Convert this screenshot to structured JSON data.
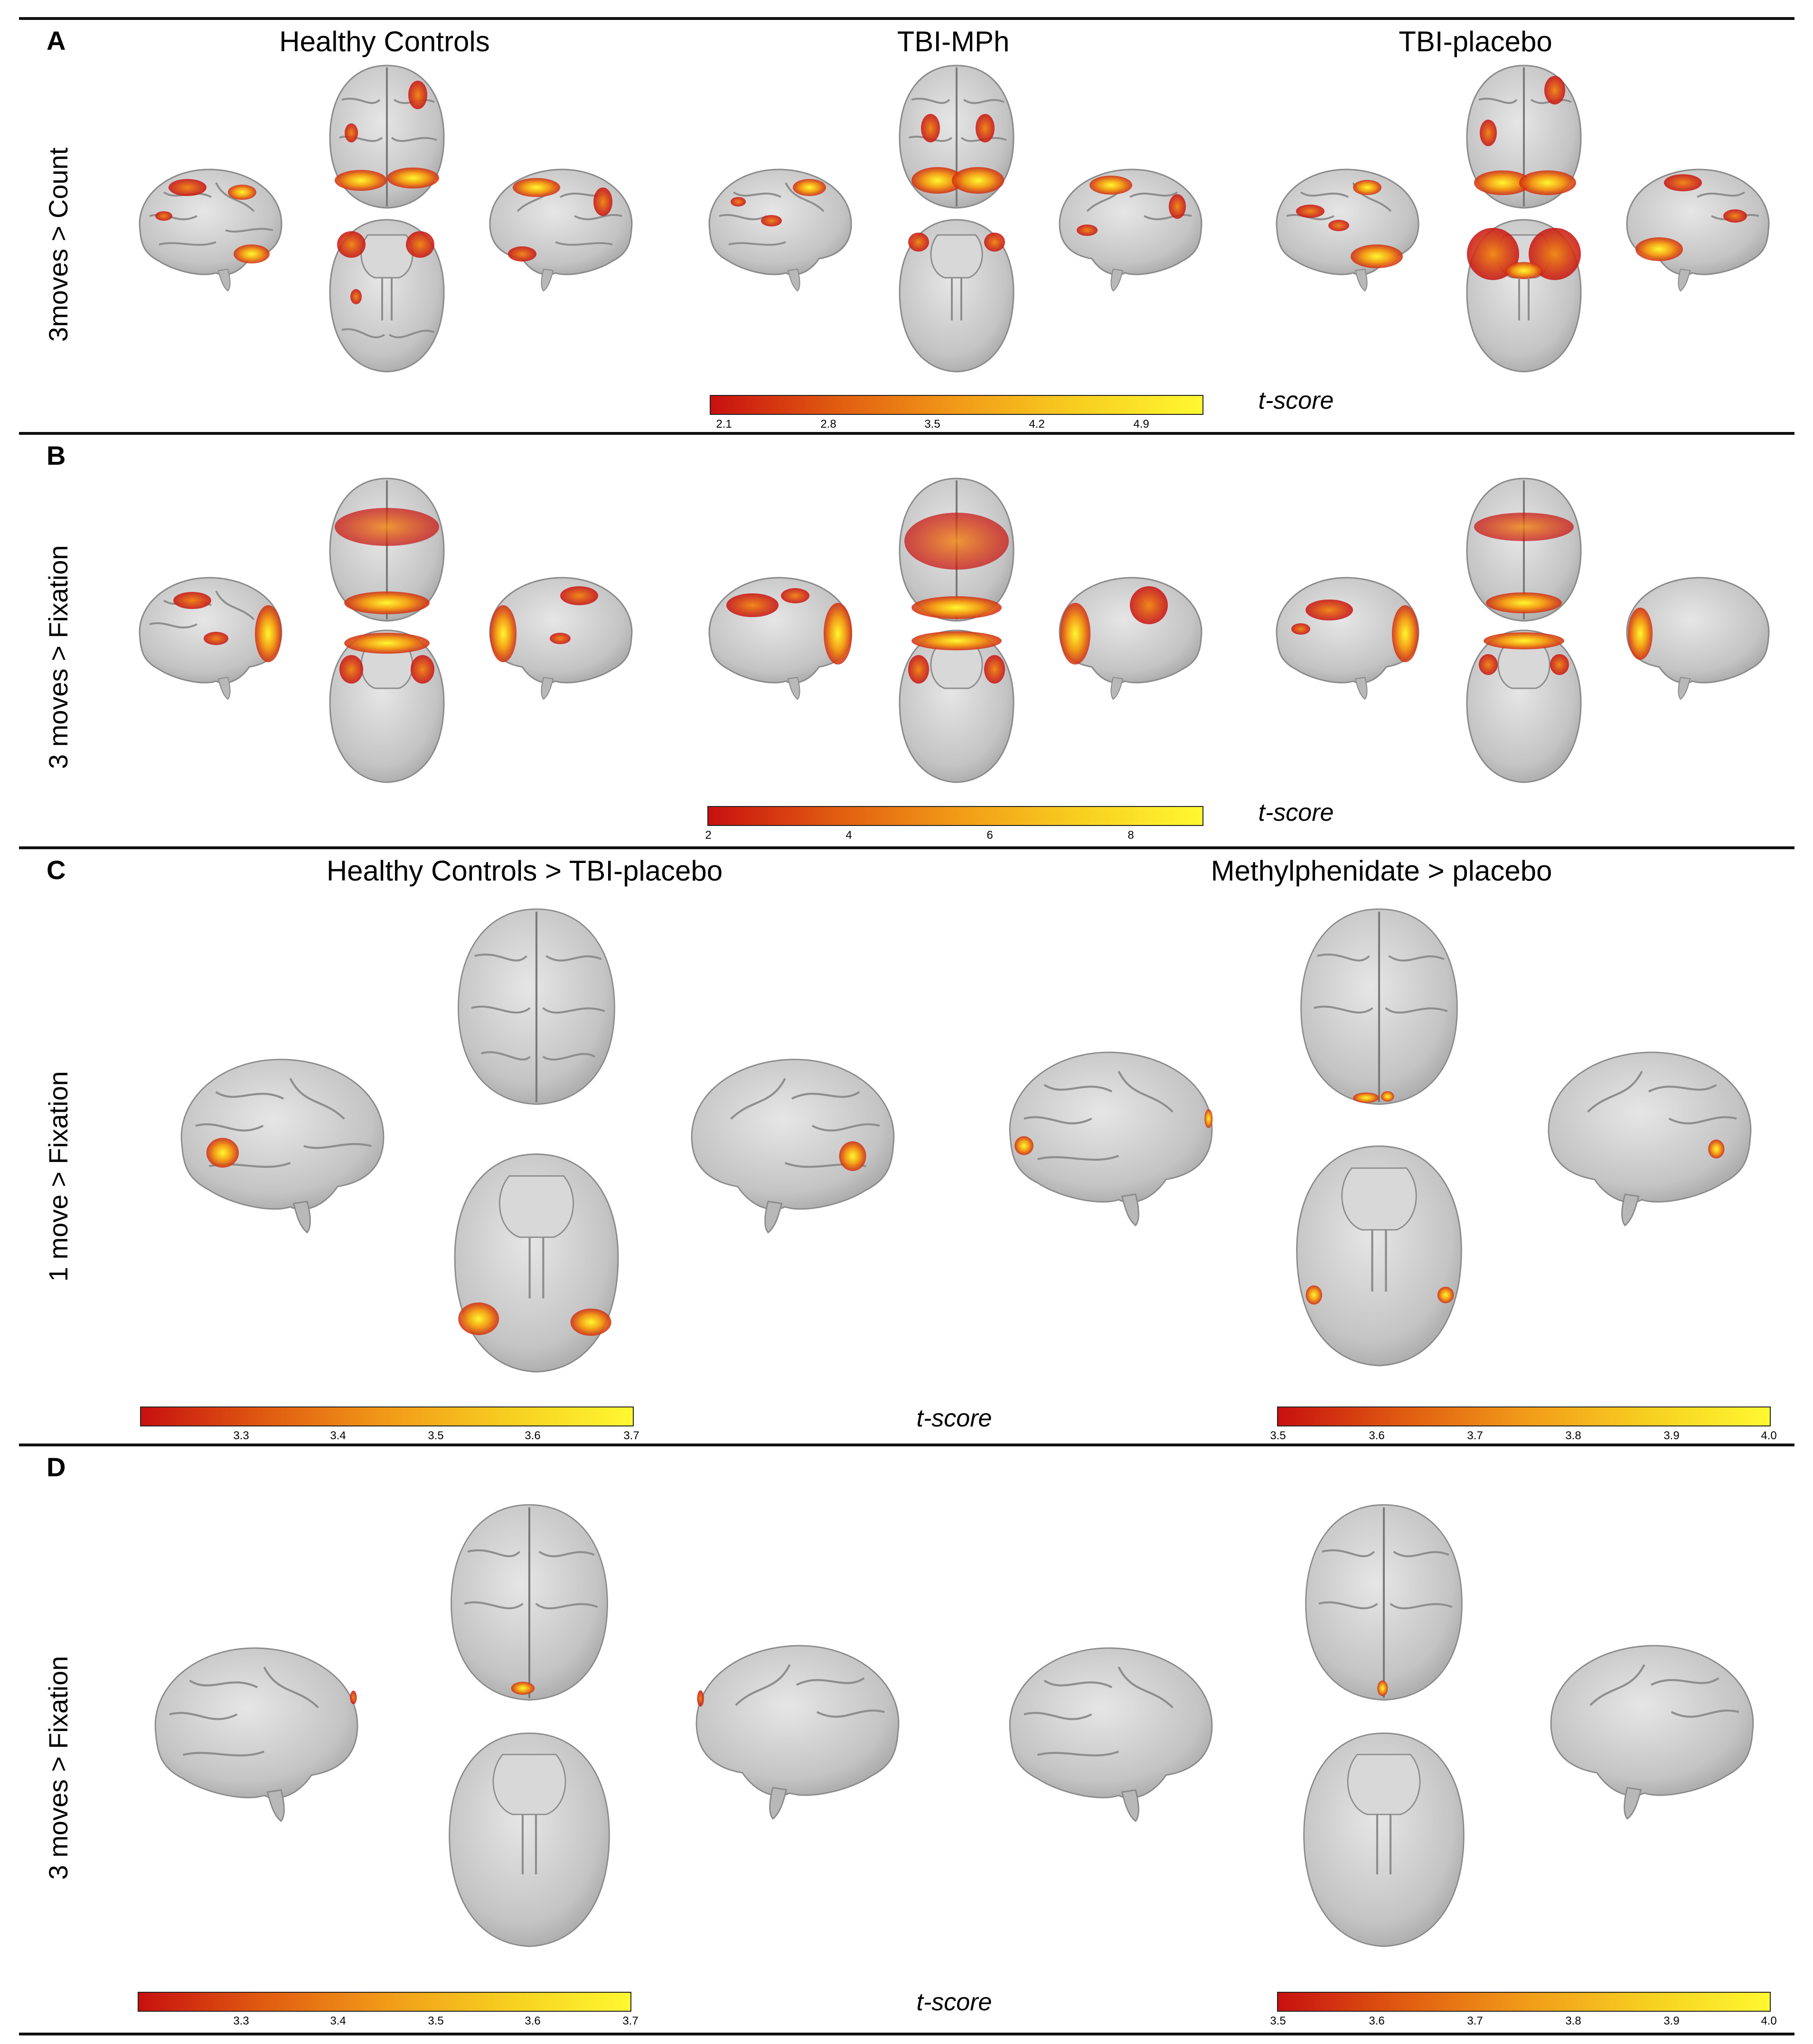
{
  "panels": {
    "A": {
      "label": "A",
      "row_label": "3moves > Count",
      "column_titles": [
        "Healthy Controls",
        "TBI-MPh",
        "TBI-placebo"
      ],
      "colorbar": {
        "axis_label": "t-score",
        "ticks": [
          "2.1",
          "2.8",
          "3.5",
          "4.2",
          "4.9"
        ]
      }
    },
    "B": {
      "label": "B",
      "row_label": "3 moves > Fixation",
      "colorbar": {
        "axis_label": "t-score",
        "ticks": [
          "2",
          "4",
          "6",
          "8"
        ]
      }
    },
    "C": {
      "label": "C",
      "row_label": "1 move > Fixation",
      "column_titles": [
        "Healthy Controls > TBI-placebo",
        "Methylphenidate > placebo"
      ],
      "colorbar_left": {
        "ticks": [
          "3.3",
          "3.4",
          "3.5",
          "3.6",
          "3.7"
        ]
      },
      "colorbar_right": {
        "ticks": [
          "3.5",
          "3.6",
          "3.7",
          "3.8",
          "3.9",
          "4.0"
        ]
      },
      "axis_label": "t-score"
    },
    "D": {
      "label": "D",
      "row_label": "3 moves > Fixation",
      "colorbar_left": {
        "ticks": [
          "3.3",
          "3.4",
          "3.5",
          "3.6",
          "3.7"
        ]
      },
      "colorbar_right": {
        "ticks": [
          "3.5",
          "3.6",
          "3.7",
          "3.8",
          "3.9",
          "4.0"
        ]
      },
      "axis_label": "t-score"
    }
  },
  "colors": {
    "brain_fill": "#c9c9c9",
    "brain_stroke": "#8a8a8a",
    "colormap_low": "#c81010",
    "colormap_high": "#fff830"
  },
  "icons": {
    "brain_views": [
      "lateral-left",
      "dorsal",
      "ventral",
      "lateral-right"
    ]
  }
}
